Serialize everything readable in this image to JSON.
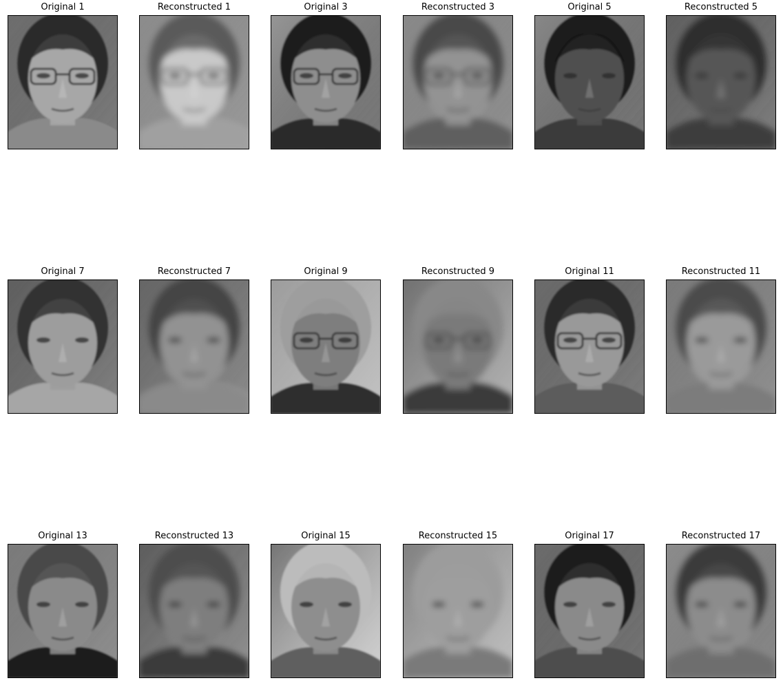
{
  "figure": {
    "background": "#ffffff",
    "frame_color": "#000000",
    "panels": [
      {
        "title": "Original 1",
        "kind": "original",
        "tone": {
          "bg": "#6e6e6e",
          "hair": "#2a2a2a",
          "skin": "#a7a7a7",
          "shirt": "#8a8a8a",
          "glasses": true
        }
      },
      {
        "title": "Reconstructed 1",
        "kind": "reconstructed",
        "tone": {
          "bg": "#8c8c8c",
          "hair": "#5a5a5a",
          "skin": "#c9c9c9",
          "shirt": "#a0a0a0",
          "glasses": true
        }
      },
      {
        "title": "Original 3",
        "kind": "original",
        "tone": {
          "bg": "#9a9a9a",
          "hair": "#1e1e1e",
          "skin": "#8e8e8e",
          "shirt": "#2c2c2c",
          "glasses": true
        }
      },
      {
        "title": "Reconstructed 3",
        "kind": "reconstructed",
        "tone": {
          "bg": "#8a8a8a",
          "hair": "#4a4a4a",
          "skin": "#939393",
          "shirt": "#5e5e5e",
          "glasses": true
        }
      },
      {
        "title": "Original 5",
        "kind": "original",
        "tone": {
          "bg": "#8b8b8b",
          "hair": "#1a1a1a",
          "skin": "#505050",
          "shirt": "#3a3a3a",
          "glasses": false
        }
      },
      {
        "title": "Reconstructed 5",
        "kind": "reconstructed",
        "tone": {
          "bg": "#606060",
          "hair": "#2e2e2e",
          "skin": "#575757",
          "shirt": "#3e3e3e",
          "glasses": false
        }
      },
      {
        "title": "Original 7",
        "kind": "original",
        "tone": {
          "bg": "#5e5e5e",
          "hair": "#333333",
          "skin": "#9d9d9d",
          "shirt": "#a6a6a6",
          "glasses": false
        }
      },
      {
        "title": "Reconstructed 7",
        "kind": "reconstructed",
        "tone": {
          "bg": "#646464",
          "hair": "#444444",
          "skin": "#929292",
          "shirt": "#8a8a8a",
          "glasses": false
        }
      },
      {
        "title": "Original 9",
        "kind": "original",
        "tone": {
          "bg": "#9a9a9a",
          "hair": "#9e9e9e",
          "skin": "#7e7e7e",
          "shirt": "#2e2e2e",
          "glasses": true
        }
      },
      {
        "title": "Reconstructed 9",
        "kind": "reconstructed",
        "tone": {
          "bg": "#6c6c6c",
          "hair": "#888888",
          "skin": "#7a7a7a",
          "shirt": "#3a3a3a",
          "glasses": true
        }
      },
      {
        "title": "Original 11",
        "kind": "original",
        "tone": {
          "bg": "#6a6a6a",
          "hair": "#2a2a2a",
          "skin": "#999999",
          "shirt": "#5c5c5c",
          "glasses": true
        }
      },
      {
        "title": "Reconstructed 11",
        "kind": "reconstructed",
        "tone": {
          "bg": "#7a7a7a",
          "hair": "#4c4c4c",
          "skin": "#9a9a9a",
          "shirt": "#7c7c7c",
          "glasses": false
        }
      },
      {
        "title": "Original 13",
        "kind": "original",
        "tone": {
          "bg": "#7a7a7a",
          "hair": "#4a4a4a",
          "skin": "#8a8a8a",
          "shirt": "#1e1e1e",
          "glasses": false
        }
      },
      {
        "title": "Reconstructed 13",
        "kind": "reconstructed",
        "tone": {
          "bg": "#5a5a5a",
          "hair": "#4e4e4e",
          "skin": "#7e7e7e",
          "shirt": "#3a3a3a",
          "glasses": false
        }
      },
      {
        "title": "Original 15",
        "kind": "original",
        "tone": {
          "bg": "#6e6e6e",
          "hair": "#bcbcbc",
          "skin": "#8e8e8e",
          "shirt": "#5e5e5e",
          "glasses": false
        }
      },
      {
        "title": "Reconstructed 15",
        "kind": "reconstructed",
        "tone": {
          "bg": "#7c7c7c",
          "hair": "#9c9c9c",
          "skin": "#9e9e9e",
          "shirt": "#7a7a7a",
          "glasses": false
        }
      },
      {
        "title": "Original 17",
        "kind": "original",
        "tone": {
          "bg": "#6c6c6c",
          "hair": "#1e1e1e",
          "skin": "#8a8a8a",
          "shirt": "#4e4e4e",
          "glasses": false
        }
      },
      {
        "title": "Reconstructed 17",
        "kind": "reconstructed",
        "tone": {
          "bg": "#8e8e8e",
          "hair": "#3a3a3a",
          "skin": "#8c8c8c",
          "shirt": "#6e6e6e",
          "glasses": false
        }
      }
    ]
  }
}
